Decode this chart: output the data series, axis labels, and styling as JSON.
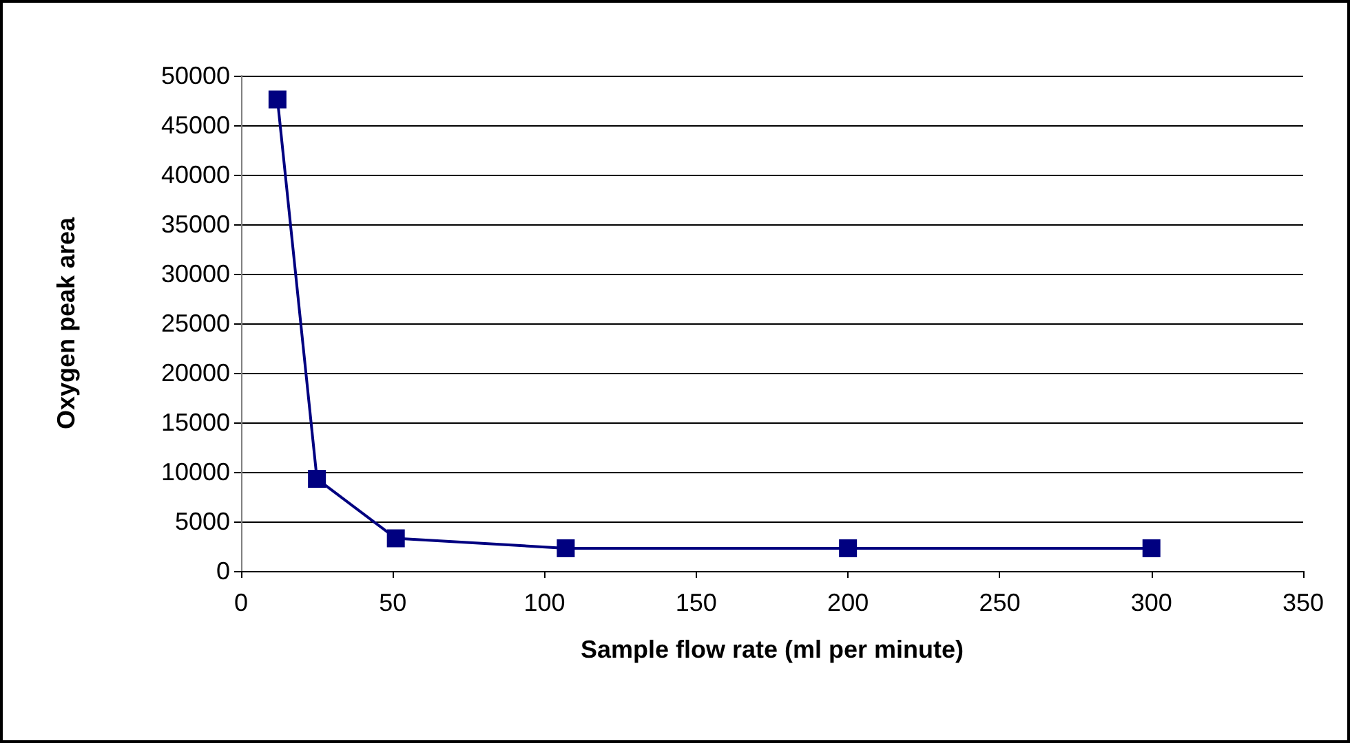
{
  "chart_data": {
    "type": "line",
    "xlabel": "Sample flow rate (ml per minute)",
    "ylabel": "Oxygen peak area",
    "x": [
      12,
      25,
      51,
      107,
      200,
      300
    ],
    "series": [
      {
        "color": "#000080",
        "values": [
          47600,
          9300,
          3300,
          2300,
          2300,
          2300
        ]
      }
    ],
    "xlim": [
      0,
      350
    ],
    "xticks": [
      0,
      50,
      100,
      150,
      200,
      250,
      300,
      350
    ],
    "ylim": [
      0,
      50000
    ],
    "yticks": [
      0,
      5000,
      10000,
      15000,
      20000,
      25000,
      30000,
      35000,
      40000,
      45000,
      50000
    ],
    "grid": "y",
    "marker": "square",
    "line_style": "solid"
  }
}
